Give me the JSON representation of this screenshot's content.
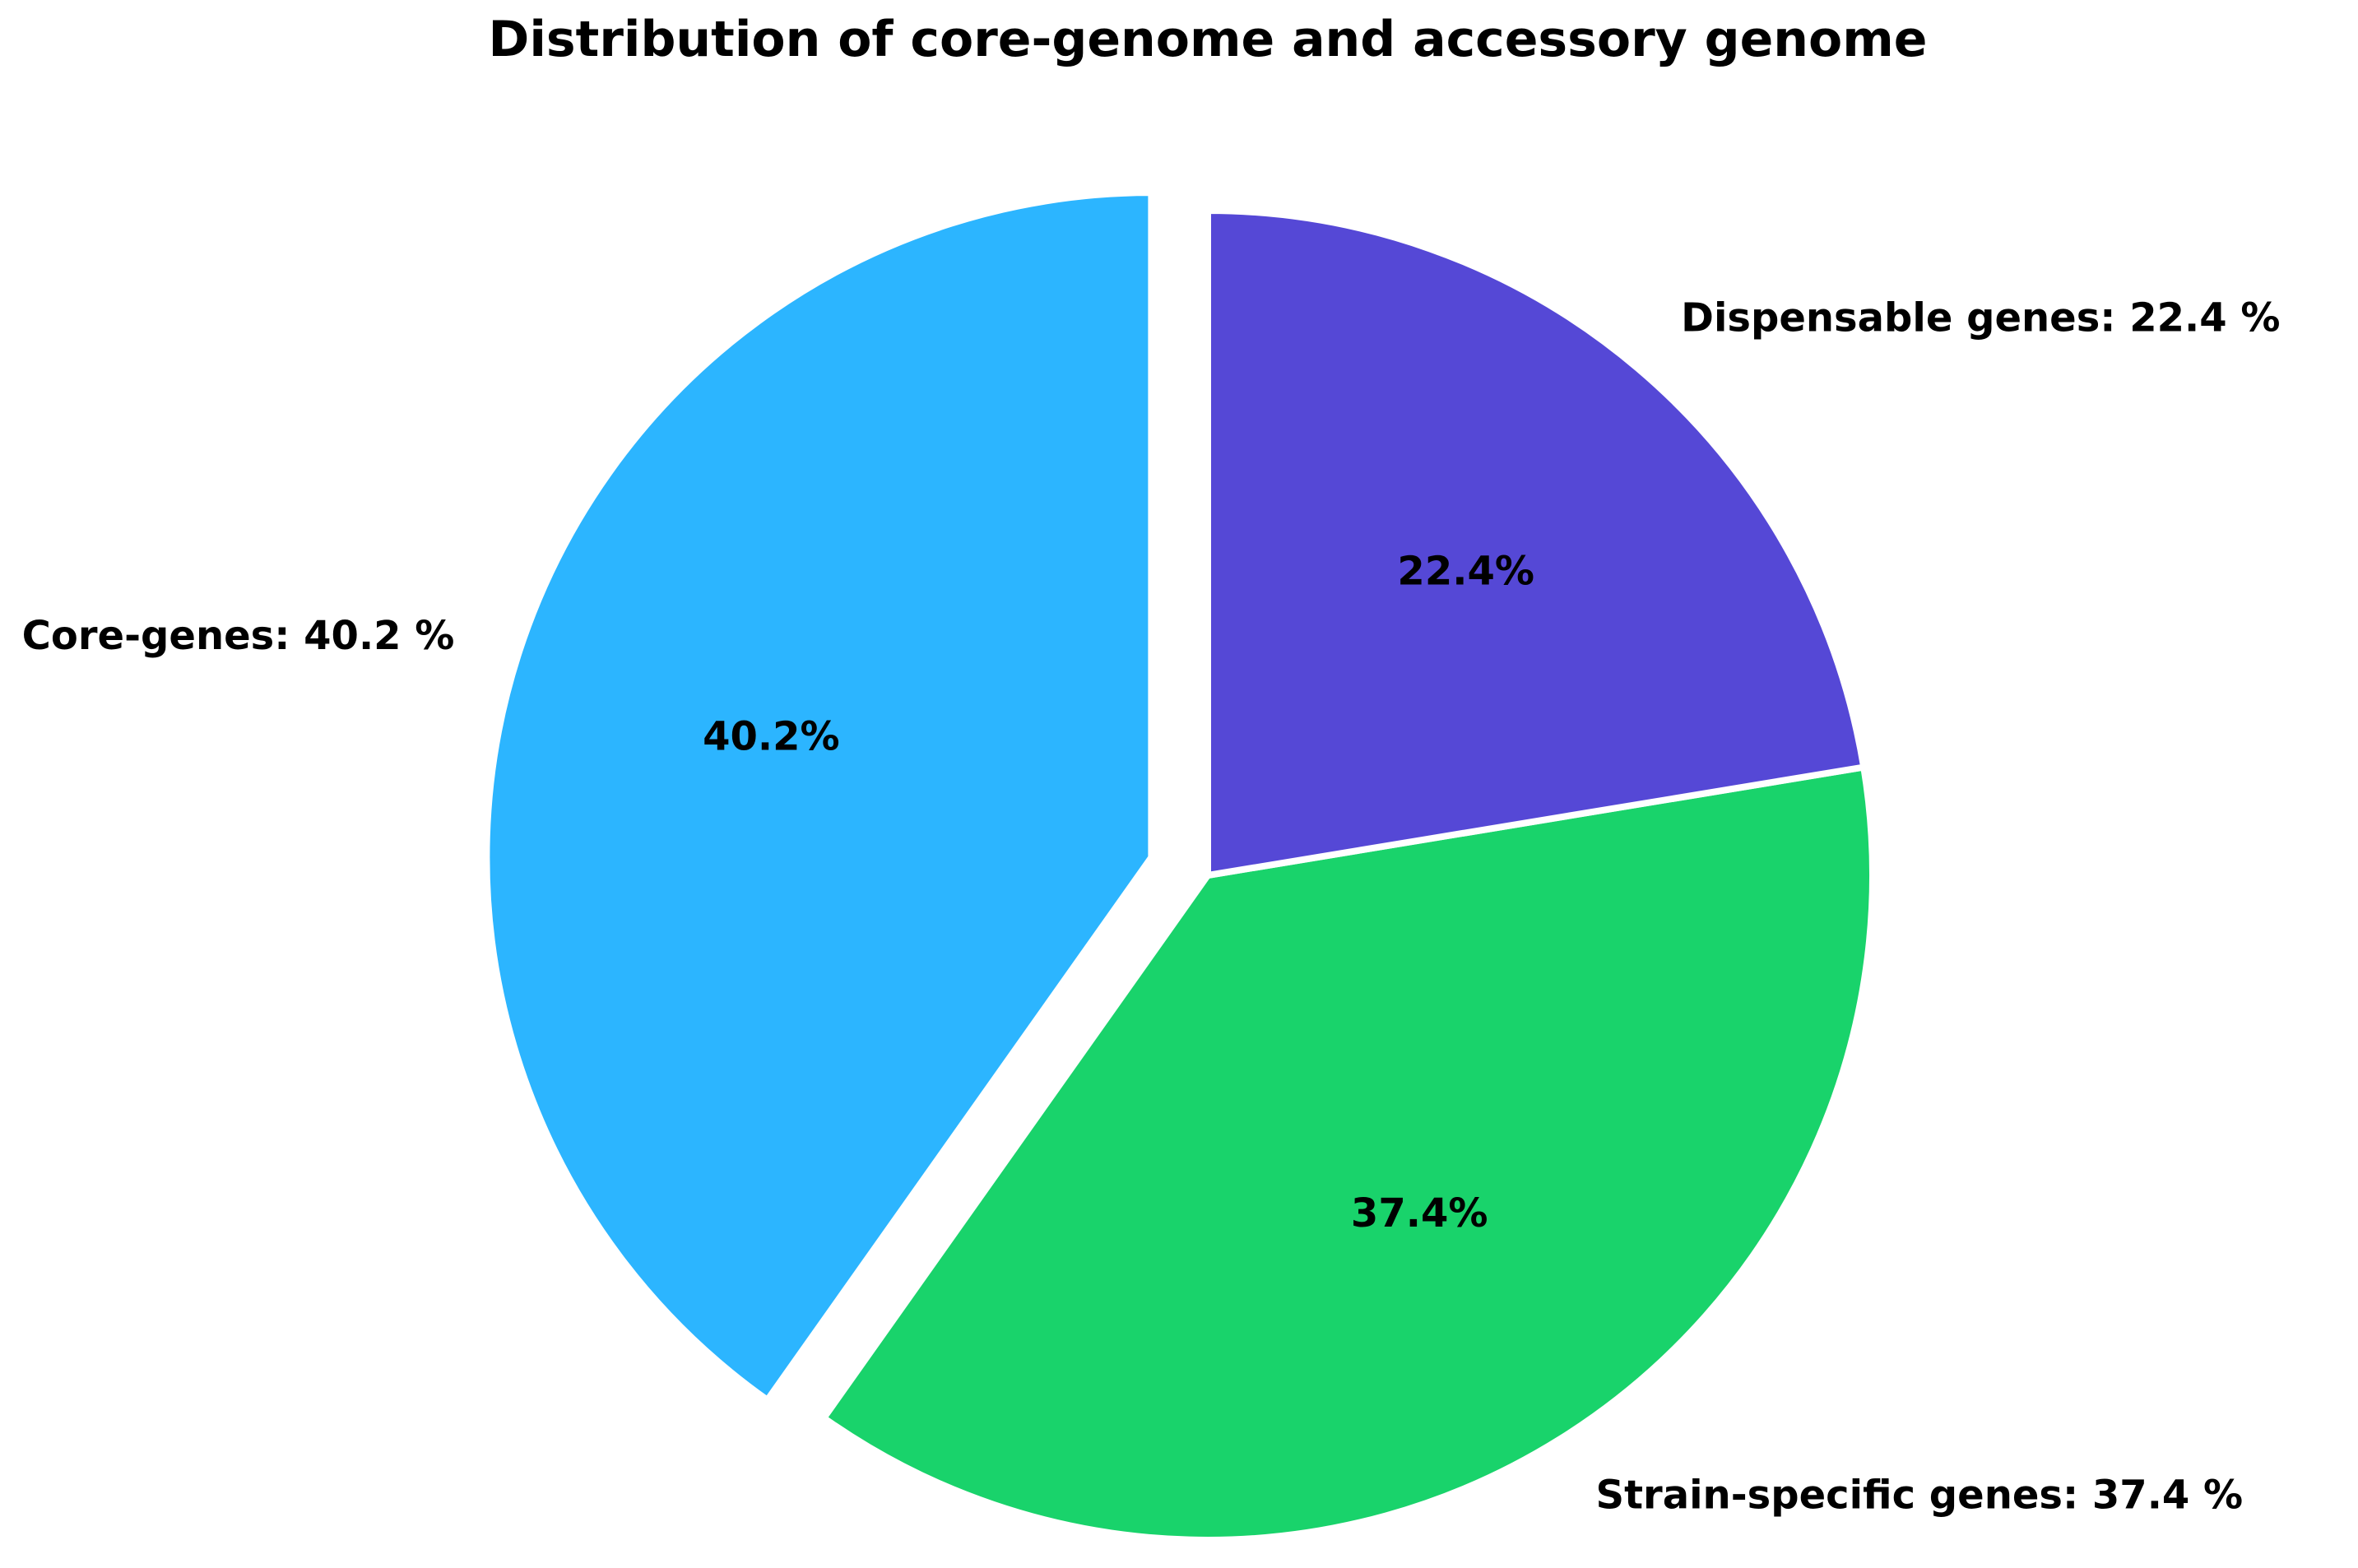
{
  "chart_data": {
    "type": "pie",
    "title": "Distribution of core-genome and accessory genome",
    "start_angle_deg": 90,
    "direction": "counterclockwise",
    "slices": [
      {
        "name": "Core-genes",
        "label": "Core-genes: 40.2 %",
        "value": 40.2,
        "pct_label": "40.2%",
        "color": "#2cb5ff",
        "exploded": true
      },
      {
        "name": "Strain-specific genes",
        "label": "Strain-specific genes: 37.4 %",
        "value": 37.4,
        "pct_label": "37.4%",
        "color": "#19d36b",
        "exploded": false
      },
      {
        "name": "Dispensable genes",
        "label": "Dispensable genes: 22.4 %",
        "value": 22.4,
        "pct_label": "22.4%",
        "color": "#5548d6",
        "exploded": false
      }
    ],
    "edge_color": "#ffffff",
    "legend": "none"
  }
}
